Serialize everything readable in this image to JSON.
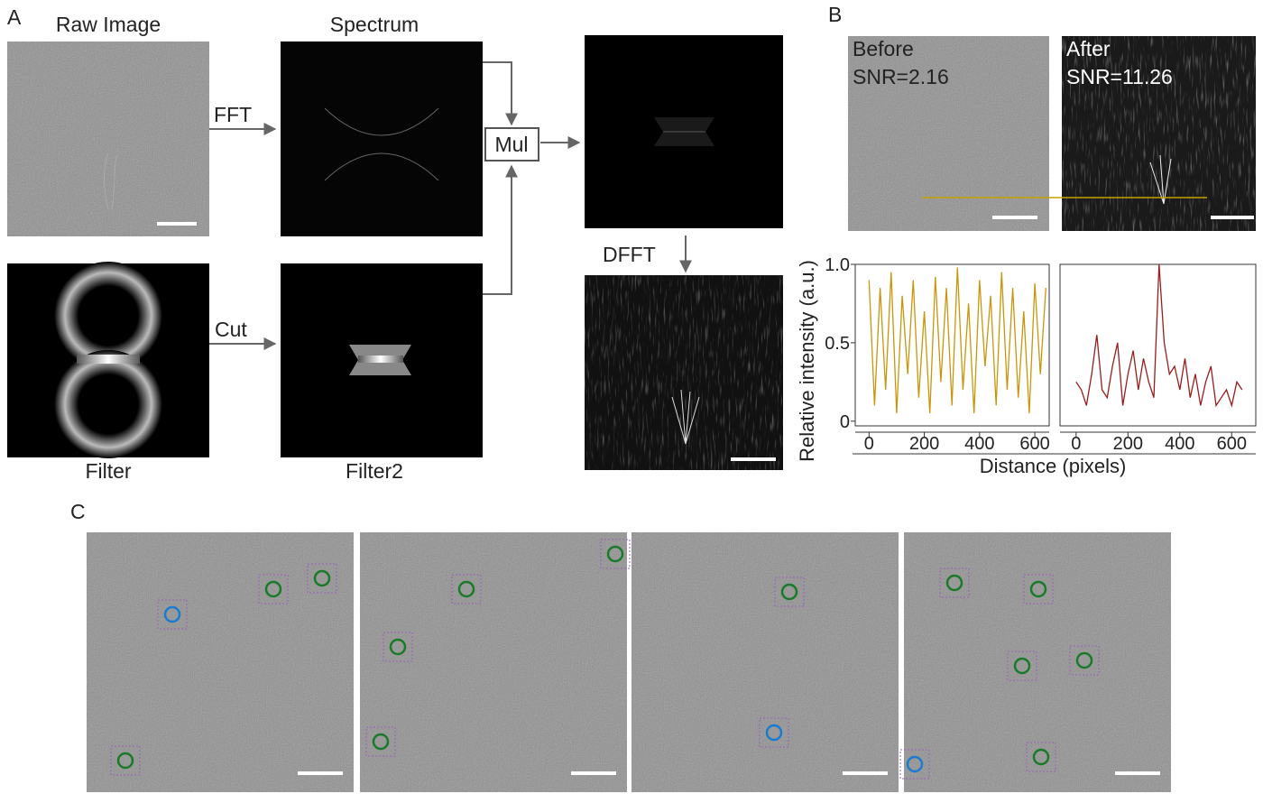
{
  "panel_a": {
    "label": "A",
    "raw_image": "Raw Image",
    "spectrum": "Spectrum",
    "fft": "FFT",
    "mul": "Mul",
    "cut": "Cut",
    "filter": "Filter",
    "filter2": "Filter2",
    "dfft": "DFFT"
  },
  "panel_b": {
    "label": "B",
    "before": "Before",
    "before_snr": "SNR=2.16",
    "after": "After",
    "after_snr": "SNR=11.26"
  },
  "panel_c": {
    "label": "C"
  },
  "chart_data": [
    {
      "type": "line",
      "ylabel": "Relative intensity (a.u.)",
      "xlabel": "Distance (pixels)",
      "x": [
        0,
        20,
        40,
        60,
        80,
        100,
        120,
        140,
        160,
        180,
        200,
        220,
        240,
        260,
        280,
        300,
        320,
        340,
        360,
        380,
        400,
        420,
        440,
        460,
        480,
        500,
        520,
        540,
        560,
        580,
        600,
        620,
        640
      ],
      "series": [
        {
          "color": "#c8960c",
          "values": [
            0.9,
            0.1,
            0.85,
            0.2,
            0.95,
            0.05,
            0.8,
            0.3,
            0.9,
            0.15,
            0.7,
            0.05,
            0.92,
            0.25,
            0.85,
            0.1,
            0.98,
            0.2,
            0.75,
            0.05,
            0.9,
            0.35,
            0.8,
            0.1,
            0.95,
            0.2,
            0.85,
            0.15,
            0.7,
            0.05,
            0.88,
            0.3,
            0.85
          ]
        }
      ],
      "xlim": [
        -50,
        652
      ],
      "ylim": [
        -0.03,
        1
      ],
      "xticks": [
        0,
        200,
        400,
        600
      ],
      "yticks": [
        0,
        0.5,
        {
          "value": 1,
          "label": "1.0"
        }
      ]
    },
    {
      "type": "line",
      "x": [
        0,
        20,
        40,
        60,
        80,
        100,
        120,
        140,
        160,
        180,
        200,
        220,
        240,
        260,
        280,
        300,
        320,
        340,
        360,
        380,
        400,
        420,
        440,
        460,
        480,
        500,
        520,
        540,
        560,
        580,
        600,
        620,
        640
      ],
      "series": [
        {
          "color": "#9b1c1c",
          "values": [
            0.25,
            0.2,
            0.1,
            0.3,
            0.55,
            0.2,
            0.15,
            0.35,
            0.5,
            0.1,
            0.3,
            0.45,
            0.2,
            0.4,
            0.25,
            0.15,
            1.0,
            0.5,
            0.3,
            0.35,
            0.2,
            0.4,
            0.15,
            0.3,
            0.1,
            0.25,
            0.35,
            0.1,
            0.15,
            0.2,
            0.1,
            0.25,
            0.2
          ]
        }
      ],
      "xlim": [
        -62,
        693
      ],
      "ylim": [
        -0.03,
        1
      ],
      "xticks": [
        0,
        200,
        400,
        600
      ]
    }
  ]
}
